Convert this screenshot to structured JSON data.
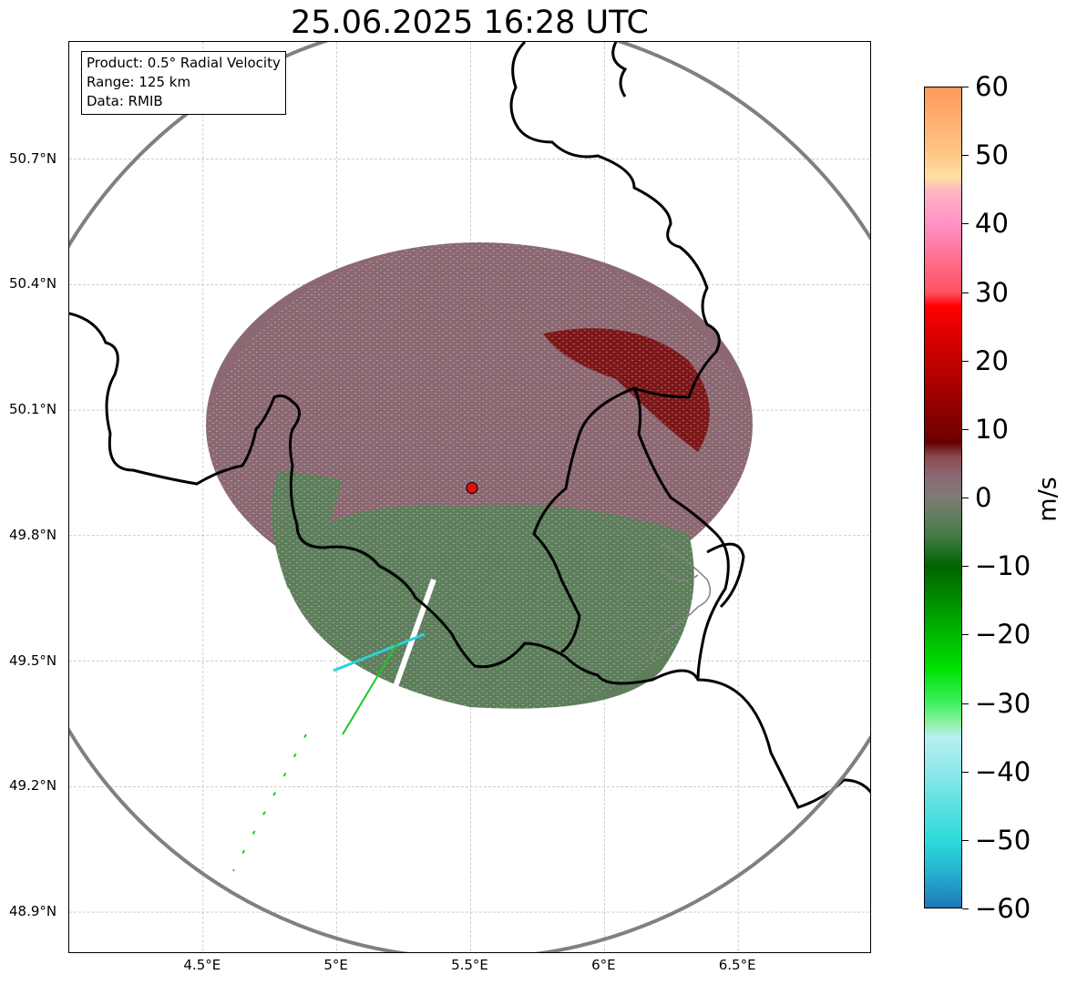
{
  "title": "25.06.2025 16:28 UTC",
  "info_box": {
    "product": "Product: 0.5° Radial Velocity",
    "range": "Range: 125 km",
    "source": "Data: RMIB"
  },
  "map": {
    "lon_range": [
      4.0,
      7.0
    ],
    "lat_range": [
      48.8,
      50.98
    ],
    "x_ticks": [
      "4.5°E",
      "5°E",
      "5.5°E",
      "6°E",
      "6.5°E"
    ],
    "y_ticks": [
      "50.7°N",
      "50.4°N",
      "50.1°N",
      "49.8°N",
      "49.5°N",
      "49.2°N",
      "48.9°N"
    ],
    "radar_site": {
      "lon": 5.505,
      "lat": 49.914
    },
    "range_ring_km": 125,
    "gridlines": true,
    "colors": {
      "inbound": "#5e7e5c",
      "outbound": "#8a5c64",
      "strong_outbound": "#7a0a0a",
      "range_ring": "#808080",
      "borders": "#000000",
      "site_marker": "#e01010"
    }
  },
  "colorbar": {
    "unit": "m/s",
    "ticks": [
      "60",
      "50",
      "40",
      "30",
      "20",
      "10",
      "0",
      "−10",
      "−20",
      "−30",
      "−40",
      "−50",
      "−60"
    ],
    "range": [
      -60,
      60
    ],
    "stops": [
      {
        "v": -60,
        "c": "#1f77b4"
      },
      {
        "v": -55,
        "c": "#26b0d0"
      },
      {
        "v": -50,
        "c": "#2ddcdc"
      },
      {
        "v": -45,
        "c": "#5ee0e0"
      },
      {
        "v": -40,
        "c": "#8ee8ea"
      },
      {
        "v": -35,
        "c": "#b8eef0"
      },
      {
        "v": -33,
        "c": "#90f0a0"
      },
      {
        "v": -30,
        "c": "#3cf060"
      },
      {
        "v": -25,
        "c": "#00e000"
      },
      {
        "v": -20,
        "c": "#00b800"
      },
      {
        "v": -15,
        "c": "#008c00"
      },
      {
        "v": -10,
        "c": "#006400"
      },
      {
        "v": -6,
        "c": "#3e7a40"
      },
      {
        "v": -3,
        "c": "#5e7e5c"
      },
      {
        "v": 0,
        "c": "#7e7c74"
      },
      {
        "v": 3,
        "c": "#8a6a74"
      },
      {
        "v": 6,
        "c": "#8a4a50"
      },
      {
        "v": 8,
        "c": "#6a0000"
      },
      {
        "v": 15,
        "c": "#a00000"
      },
      {
        "v": 22,
        "c": "#d00000"
      },
      {
        "v": 28,
        "c": "#ff0000"
      },
      {
        "v": 30,
        "c": "#ff5060"
      },
      {
        "v": 35,
        "c": "#ff7090"
      },
      {
        "v": 40,
        "c": "#ff90c8"
      },
      {
        "v": 45,
        "c": "#ffb8c0"
      },
      {
        "v": 47,
        "c": "#ffe0a0"
      },
      {
        "v": 50,
        "c": "#ffc888"
      },
      {
        "v": 55,
        "c": "#ffb070"
      },
      {
        "v": 60,
        "c": "#ff9a58"
      }
    ]
  }
}
